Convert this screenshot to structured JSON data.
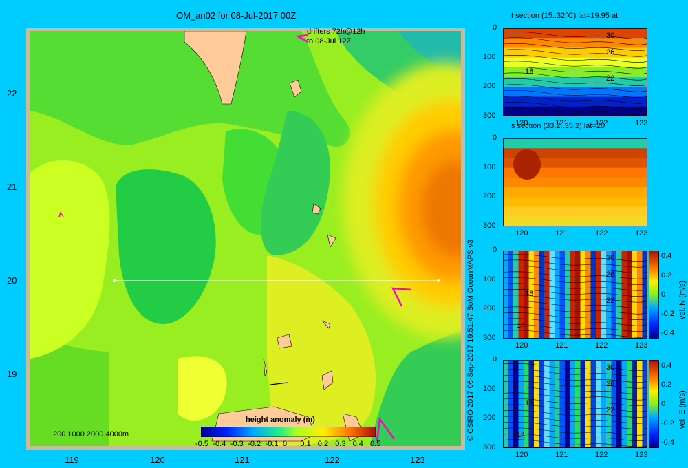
{
  "main_map": {
    "title": "OM_an02 for 08-Jul-2017 00Z",
    "drifters_label": [
      "drifters 72h@12h",
      "to 08-Jul 12Z"
    ],
    "x_ticks": [
      "119",
      "120",
      "121",
      "122",
      "123"
    ],
    "y_ticks": [
      "22",
      "21",
      "20",
      "19"
    ],
    "depth_legend": "200  1000  2000  4000m",
    "colorbar_label": "height anomaly  (m)",
    "colorbar_ticks": [
      "-0.5",
      "-0.4",
      "-0.3",
      "-0.2",
      "-0.1",
      "0",
      "0.1",
      "0.2",
      "0.3",
      "0.4",
      "0.5"
    ]
  },
  "credit": "© CSIRO 2017   06-Sep-2017 19:51:47 BoM OceanMAPS v3",
  "panels": [
    {
      "id": "t",
      "title": "t section (15..32°C) lat=19.95 at",
      "contour_labels": [
        "30",
        "26",
        "18",
        "22"
      ]
    },
    {
      "id": "s",
      "title": "s section (33.2..35.2) lat=20",
      "contour_labels": []
    },
    {
      "id": "n",
      "title": "",
      "contour_labels": [
        "30",
        "26",
        "18",
        "22",
        "14"
      ],
      "cbar_label": "vel. N  (m/s)",
      "cbar_ticks": [
        "0.4",
        "0.2",
        "0",
        "-0.2",
        "-0.4"
      ]
    },
    {
      "id": "e",
      "title": "",
      "contour_labels": [
        "30",
        "26",
        "18",
        "22",
        "14"
      ],
      "cbar_label": "vel. E  (m/s)",
      "cbar_ticks": [
        "0.4",
        "0.2",
        "0",
        "-0.2",
        "-0.4"
      ]
    }
  ],
  "panel_x_ticks": [
    "120",
    "121",
    "122",
    "123"
  ],
  "panel_y_ticks": [
    "0",
    "100",
    "200",
    "300"
  ],
  "chart_data": [
    {
      "type": "heatmap",
      "title": "OM_an02 for 08-Jul-2017 00Z",
      "xlabel": "",
      "ylabel": "",
      "xlim": [
        118.5,
        123.5
      ],
      "ylim": [
        18.3,
        22.7
      ],
      "colorbar": {
        "label": "height anomaly (m)",
        "range": [
          -0.5,
          0.5
        ]
      },
      "section_line": {
        "lat": 20,
        "lon": [
          119.5,
          123.2
        ]
      },
      "features": [
        {
          "name": "high",
          "lon": 123.2,
          "lat": 20.8,
          "value": 0.35
        },
        {
          "name": "low",
          "lon": 120.3,
          "lat": 20.4,
          "value": 0.02
        }
      ]
    },
    {
      "type": "heatmap",
      "title": "t section (15..32°C) lat=19.95 at",
      "xlim": [
        119.6,
        123.2
      ],
      "ylim": [
        300,
        0
      ],
      "range": [
        15,
        32
      ]
    },
    {
      "type": "heatmap",
      "title": "s section (33.2..35.2) lat=20",
      "xlim": [
        119.6,
        123.2
      ],
      "ylim": [
        300,
        0
      ],
      "range": [
        33.2,
        35.2
      ]
    },
    {
      "type": "heatmap",
      "title": "",
      "xlim": [
        119.6,
        123.2
      ],
      "ylim": [
        300,
        0
      ],
      "colorbar": {
        "label": "vel. N (m/s)",
        "range": [
          -0.4,
          0.4
        ]
      }
    },
    {
      "type": "heatmap",
      "title": "",
      "xlim": [
        119.6,
        123.2
      ],
      "ylim": [
        300,
        0
      ],
      "colorbar": {
        "label": "vel. E (m/s)",
        "range": [
          -0.4,
          0.4
        ]
      }
    }
  ]
}
